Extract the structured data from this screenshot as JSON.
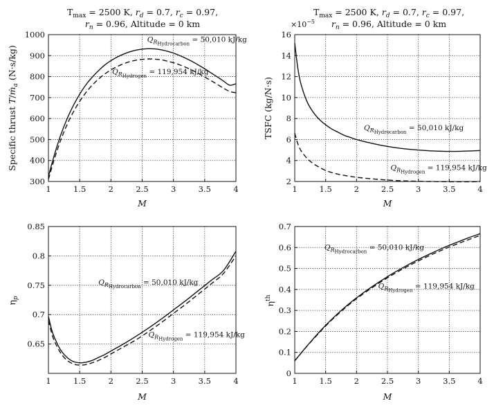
{
  "chart_data": [
    {
      "id": "thrust",
      "type": "line",
      "title_lines": [
        "T_max = 2500 K, r_d = 0.7, r_c = 0.97,",
        "r_n = 0.96, Altitude = 0 km"
      ],
      "xlabel": "M",
      "ylabel": "Specific thrust T/ṁa (N·s/kg)",
      "xlim": [
        1,
        4
      ],
      "ylim": [
        300,
        1000
      ],
      "xticks": [
        1,
        1.5,
        2,
        2.5,
        3,
        3.5,
        4
      ],
      "xtick_labels": [
        "1",
        "1.5",
        "2",
        "2.5",
        "3",
        "3.5",
        "4"
      ],
      "yticks": [
        300,
        400,
        500,
        600,
        700,
        800,
        900,
        1000
      ],
      "ytick_labels": [
        "300",
        "400",
        "500",
        "600",
        "700",
        "800",
        "900",
        "1000"
      ],
      "grid": true,
      "series": [
        {
          "name": "Q_R Hydrocarbon = 50,010 kJ/kg",
          "style": "solid",
          "x": [
            1.0,
            1.1,
            1.2,
            1.3,
            1.4,
            1.5,
            1.6,
            1.7,
            1.8,
            1.9,
            2.0,
            2.1,
            2.2,
            2.3,
            2.4,
            2.5,
            2.6,
            2.7,
            2.8,
            2.9,
            3.0,
            3.1,
            3.2,
            3.3,
            3.4,
            3.5,
            3.6,
            3.7,
            3.8,
            3.9,
            4.0
          ],
          "y": [
            325,
            432,
            524,
            600,
            663,
            716,
            761,
            797,
            828,
            855,
            876,
            893,
            907,
            918,
            926,
            931,
            933,
            932,
            928,
            921,
            912,
            900,
            887,
            872,
            855,
            837,
            818,
            799,
            779,
            759,
            766
          ]
        },
        {
          "name": "Q_R Hydrogen = 119,954 kJ/kg",
          "style": "dashed",
          "x": [
            1.0,
            1.1,
            1.2,
            1.3,
            1.4,
            1.5,
            1.6,
            1.7,
            1.8,
            1.9,
            2.0,
            2.1,
            2.2,
            2.3,
            2.4,
            2.5,
            2.6,
            2.7,
            2.8,
            2.9,
            3.0,
            3.1,
            3.2,
            3.3,
            3.4,
            3.5,
            3.6,
            3.7,
            3.8,
            3.9,
            4.0
          ],
          "y": [
            310,
            412,
            500,
            572,
            632,
            682,
            724,
            759,
            788,
            812,
            832,
            848,
            861,
            871,
            878,
            882,
            884,
            883,
            880,
            874,
            866,
            856,
            844,
            830,
            815,
            798,
            781,
            763,
            745,
            729,
            723
          ]
        }
      ],
      "annotations": [
        {
          "series": 0,
          "prefix": "Q",
          "sub": "RHydrocarbon",
          "text": " = 50,010 kJ/kg",
          "x": 2.58,
          "y": 965
        },
        {
          "series": 1,
          "prefix": "Q",
          "sub": "RHydrogen",
          "text": " = 119,954 kJ/kg",
          "x": 2.02,
          "y": 812
        }
      ]
    },
    {
      "id": "tsfc",
      "type": "line",
      "title_lines": [
        "T_max = 2500 K, r_d = 0.7, r_c = 0.97,",
        "r_n = 0.96, Altitude = 0 km"
      ],
      "xlabel": "M",
      "ylabel": "TSFC (kg/N·s)",
      "y_exponent": "×10−5",
      "xlim": [
        1,
        4
      ],
      "ylim": [
        2,
        16
      ],
      "xticks": [
        1,
        1.5,
        2,
        2.5,
        3,
        3.5,
        4
      ],
      "xtick_labels": [
        "1",
        "1.5",
        "2",
        "2.5",
        "3",
        "3.5",
        "4"
      ],
      "yticks": [
        2,
        4,
        6,
        8,
        10,
        12,
        14,
        16
      ],
      "ytick_labels": [
        "2",
        "4",
        "6",
        "8",
        "10",
        "12",
        "14",
        "16"
      ],
      "grid": true,
      "series": [
        {
          "name": "Q_R Hydrocarbon = 50,010 kJ/kg",
          "style": "solid",
          "x": [
            1.0,
            1.05,
            1.1,
            1.2,
            1.3,
            1.4,
            1.5,
            1.6,
            1.7,
            1.8,
            1.9,
            2.0,
            2.2,
            2.4,
            2.6,
            2.8,
            3.0,
            3.2,
            3.4,
            3.6,
            3.8,
            4.0
          ],
          "y": [
            15.2,
            12.8,
            11.3,
            9.6,
            8.6,
            7.9,
            7.4,
            7.0,
            6.7,
            6.4,
            6.2,
            6.0,
            5.7,
            5.45,
            5.25,
            5.1,
            5.0,
            4.92,
            4.88,
            4.87,
            4.9,
            4.95
          ]
        },
        {
          "name": "Q_R Hydrogen = 119,954 kJ/kg",
          "style": "dashed",
          "x": [
            1.0,
            1.05,
            1.1,
            1.2,
            1.3,
            1.4,
            1.5,
            1.6,
            1.7,
            1.8,
            1.9,
            2.0,
            2.2,
            2.4,
            2.6,
            2.8,
            3.0,
            3.2,
            3.4,
            3.6,
            3.8,
            4.0
          ],
          "y": [
            6.6,
            5.6,
            4.95,
            4.2,
            3.7,
            3.35,
            3.05,
            2.85,
            2.7,
            2.58,
            2.48,
            2.4,
            2.28,
            2.18,
            2.1,
            2.05,
            2.02,
            2.0,
            1.98,
            1.97,
            1.97,
            1.98
          ]
        }
      ],
      "annotations": [
        {
          "series": 0,
          "prefix": "Q",
          "sub": "RHydrocarbon",
          "text": " = 50,010 kJ/kg",
          "x": 2.12,
          "y": 6.9
        },
        {
          "series": 1,
          "prefix": "Q",
          "sub": "RHydrogen",
          "text": " = 119,954 kJ/kg",
          "x": 2.55,
          "y": 3.1
        }
      ]
    },
    {
      "id": "eta_p",
      "type": "line",
      "title_lines": [],
      "xlabel": "M",
      "ylabel": "ηp",
      "xlim": [
        1,
        4
      ],
      "ylim": [
        0.6,
        0.85
      ],
      "xticks": [
        1,
        1.5,
        2,
        2.5,
        3,
        3.5,
        4
      ],
      "xtick_labels": [
        "1",
        "1.5",
        "2",
        "2.5",
        "3",
        "3.5",
        "4"
      ],
      "yticks": [
        0.65,
        0.7,
        0.75,
        0.8,
        0.85
      ],
      "ytick_labels": [
        "0.65",
        "0.7",
        "0.75",
        "0.8",
        "0.85"
      ],
      "grid": true,
      "series": [
        {
          "name": "Q_R Hydrocarbon = 50,010 kJ/kg",
          "style": "solid",
          "x": [
            1.0,
            1.05,
            1.1,
            1.2,
            1.3,
            1.4,
            1.5,
            1.6,
            1.7,
            1.8,
            1.9,
            2.0,
            2.2,
            2.4,
            2.6,
            2.8,
            3.0,
            3.2,
            3.4,
            3.6,
            3.8,
            4.0
          ],
          "y": [
            0.697,
            0.675,
            0.66,
            0.639,
            0.627,
            0.62,
            0.618,
            0.619,
            0.622,
            0.627,
            0.632,
            0.638,
            0.65,
            0.663,
            0.677,
            0.692,
            0.708,
            0.724,
            0.741,
            0.758,
            0.775,
            0.808
          ]
        },
        {
          "name": "Q_R Hydrogen = 119,954 kJ/kg",
          "style": "dashed",
          "x": [
            1.0,
            1.05,
            1.1,
            1.2,
            1.3,
            1.4,
            1.5,
            1.6,
            1.7,
            1.8,
            1.9,
            2.0,
            2.2,
            2.4,
            2.6,
            2.8,
            3.0,
            3.2,
            3.4,
            3.6,
            3.8,
            4.0
          ],
          "y": [
            0.69,
            0.669,
            0.654,
            0.634,
            0.622,
            0.616,
            0.614,
            0.615,
            0.618,
            0.622,
            0.627,
            0.633,
            0.645,
            0.657,
            0.671,
            0.686,
            0.702,
            0.718,
            0.735,
            0.752,
            0.77,
            0.8
          ]
        }
      ],
      "annotations": [
        {
          "series": 0,
          "prefix": "Q",
          "sub": "RHydrocarbon",
          "text": " = 50,010 kJ/kg",
          "x": 1.8,
          "y": 0.751
        },
        {
          "series": 1,
          "prefix": "Q",
          "sub": "RHydrogen",
          "text": " = 119,954 kJ/kg",
          "x": 2.6,
          "y": 0.662
        }
      ]
    },
    {
      "id": "eta_th",
      "type": "line",
      "title_lines": [],
      "xlabel": "M",
      "ylabel": "ηth",
      "xlim": [
        1,
        4
      ],
      "ylim": [
        0,
        0.7
      ],
      "xticks": [
        1,
        1.5,
        2,
        2.5,
        3,
        3.5,
        4
      ],
      "xtick_labels": [
        "1",
        "1.5",
        "2",
        "2.5",
        "3",
        "3.5",
        "4"
      ],
      "yticks": [
        0,
        0.1,
        0.2,
        0.3,
        0.4,
        0.5,
        0.6,
        0.7
      ],
      "ytick_labels": [
        "0",
        "0.1",
        "0.2",
        "0.3",
        "0.4",
        "0.5",
        "0.6",
        "0.7"
      ],
      "grid": true,
      "series": [
        {
          "name": "Q_R Hydrocarbon = 50,010 kJ/kg",
          "style": "solid",
          "x": [
            1.0,
            1.1,
            1.2,
            1.3,
            1.4,
            1.5,
            1.6,
            1.7,
            1.8,
            1.9,
            2.0,
            2.2,
            2.4,
            2.6,
            2.8,
            3.0,
            3.2,
            3.4,
            3.6,
            3.8,
            4.0
          ],
          "y": [
            0.06,
            0.096,
            0.131,
            0.165,
            0.198,
            0.229,
            0.258,
            0.286,
            0.312,
            0.337,
            0.36,
            0.403,
            0.442,
            0.479,
            0.512,
            0.543,
            0.571,
            0.598,
            0.622,
            0.645,
            0.666
          ]
        },
        {
          "name": "Q_R Hydrogen = 119,954 kJ/kg",
          "style": "dashed",
          "x": [
            1.0,
            1.1,
            1.2,
            1.3,
            1.4,
            1.5,
            1.6,
            1.7,
            1.8,
            1.9,
            2.0,
            2.2,
            2.4,
            2.6,
            2.8,
            3.0,
            3.2,
            3.4,
            3.6,
            3.8,
            4.0
          ],
          "y": [
            0.06,
            0.095,
            0.13,
            0.163,
            0.195,
            0.226,
            0.255,
            0.282,
            0.308,
            0.333,
            0.356,
            0.398,
            0.437,
            0.473,
            0.506,
            0.536,
            0.564,
            0.59,
            0.614,
            0.636,
            0.658
          ]
        }
      ],
      "annotations": [
        {
          "series": 0,
          "prefix": "Q",
          "sub": "RHydrocarbon",
          "text": " = 50,010 kJ/kg",
          "x": 1.48,
          "y": 0.59
        },
        {
          "series": 1,
          "prefix": "Q",
          "sub": "RHydrogen",
          "text": " = 119,954 kJ/kg",
          "x": 2.35,
          "y": 0.405
        }
      ]
    }
  ]
}
